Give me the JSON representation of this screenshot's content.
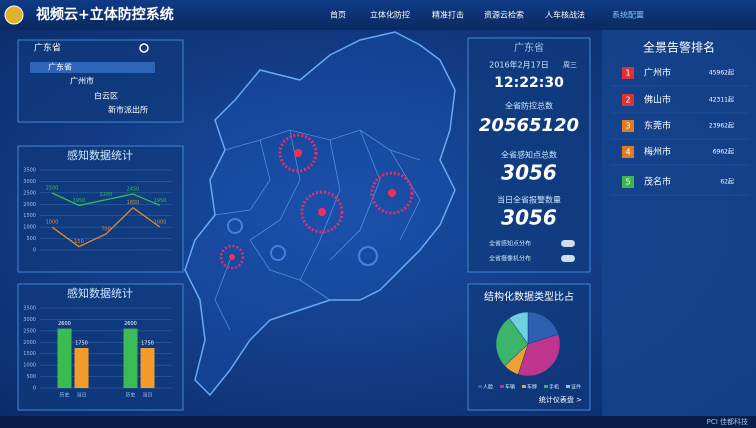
{
  "header": {
    "title": "视频云+立体防控系统",
    "nav": [
      "首页",
      "立体化防控",
      "精准打击",
      "资源云检索",
      "人车核战法",
      "系统配置"
    ]
  },
  "search": {
    "value": "广东省"
  },
  "tree": [
    "广东省",
    "广州市",
    "白云区",
    "新市派出所"
  ],
  "line_chart": {
    "type": "line",
    "title": "感知数据统计",
    "ylim": [
      0,
      3500
    ],
    "yticks": [
      0,
      500,
      1000,
      1500,
      2000,
      2500,
      3000,
      3500
    ],
    "series": [
      {
        "color": "#3cba54",
        "values": [
          2500,
          1950,
          2200,
          2450,
          1950
        ]
      },
      {
        "color": "#e08a2e",
        "values": [
          1000,
          150,
          700,
          1850,
          1000
        ]
      }
    ]
  },
  "bar_chart": {
    "type": "bar",
    "title": "感知数据统计",
    "ylim": [
      0,
      3500
    ],
    "yticks": [
      0,
      500,
      1000,
      1500,
      2000,
      2500,
      3000,
      3500
    ],
    "categories": [
      "历史",
      "当日",
      "历史",
      "当日"
    ],
    "values": [
      2600,
      1750,
      2600,
      1750
    ],
    "colors": [
      "#3cba54",
      "#f39c2b",
      "#3cba54",
      "#f39c2b"
    ]
  },
  "stats": {
    "region": "广东省",
    "date": "2016年2月17日",
    "weekday": "周三",
    "time": "12:22:30",
    "items": [
      {
        "label": "全省防控总数",
        "value": "20565120"
      },
      {
        "label": "全省感知点总数",
        "value": "3056"
      },
      {
        "label": "当日全省报警数量",
        "value": "3056"
      }
    ],
    "toggles": [
      "全省感知点分布",
      "全省摄像机分布"
    ]
  },
  "pie_chart": {
    "type": "pie",
    "title": "结构化数据类型比占",
    "series": [
      {
        "name": "人脸",
        "color": "#2f5fb3",
        "values": [
          20
        ]
      },
      {
        "name": "车辆",
        "color": "#c0368f",
        "values": [
          35
        ]
      },
      {
        "name": "车牌",
        "color": "#f0a030",
        "values": [
          8
        ]
      },
      {
        "name": "手机",
        "color": "#3cb56a",
        "values": [
          27
        ]
      },
      {
        "name": "证件",
        "color": "#6fd0e0",
        "values": [
          10
        ]
      }
    ],
    "link": "统计仪表盘 >"
  },
  "ranking": {
    "title": "全景告警排名",
    "items": [
      {
        "rank": "1",
        "city": "广州市",
        "count": "45962起",
        "color": "#d9343a"
      },
      {
        "rank": "2",
        "city": "佛山市",
        "count": "42311起",
        "color": "#d9343a"
      },
      {
        "rank": "3",
        "city": "东莞市",
        "count": "23962起",
        "color": "#e07b22"
      },
      {
        "rank": "4",
        "city": "梅州市",
        "count": "6962起",
        "color": "#e07b22"
      },
      {
        "rank": "5",
        "city": "茂名市",
        "count": "62起",
        "color": "#3fb54e"
      }
    ]
  },
  "footer": {
    "brand": "PCI 佳都科技"
  }
}
